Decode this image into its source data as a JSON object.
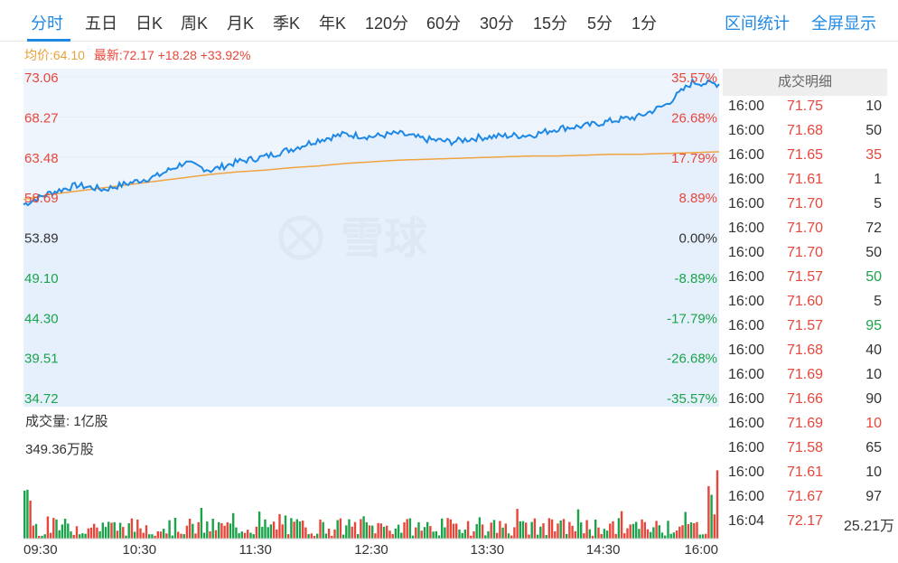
{
  "tabs": [
    {
      "label": "分时",
      "active": true
    },
    {
      "label": "五日"
    },
    {
      "label": "日K"
    },
    {
      "label": "周K"
    },
    {
      "label": "月K"
    },
    {
      "label": "季K"
    },
    {
      "label": "年K"
    },
    {
      "label": "120分"
    },
    {
      "label": "60分"
    },
    {
      "label": "30分"
    },
    {
      "label": "15分"
    },
    {
      "label": "5分"
    },
    {
      "label": "1分"
    }
  ],
  "links": {
    "range_stats": "区间统计",
    "fullscreen": "全屏显示"
  },
  "info": {
    "avg_price": "均价:64.10",
    "latest": "最新:72.17 +18.28 +33.92%"
  },
  "watermark": "雪球",
  "volume_labels": {
    "unit": "成交量: 1亿股",
    "max": "349.36万股"
  },
  "colors": {
    "up": "#e8463a",
    "down": "#1aa34a",
    "line": "#1e88e5",
    "avg": "#f0a340",
    "fill": "#eef5fd"
  },
  "chart_data": {
    "type": "line",
    "prev_close": 53.89,
    "ylim": [
      34.72,
      73.06
    ],
    "price_ticks": [
      "73.06",
      "68.27",
      "63.48",
      "58.69",
      "53.89",
      "49.10",
      "44.30",
      "39.51",
      "34.72"
    ],
    "pct_ticks": [
      "35.57%",
      "26.68%",
      "17.79%",
      "8.89%",
      "0.00%",
      "-8.89%",
      "-17.79%",
      "-26.68%",
      "-35.57%"
    ],
    "time_ticks": [
      "09:30",
      "10:30",
      "11:30",
      "12:30",
      "13:30",
      "14:30",
      "16:00"
    ],
    "x": [
      "09:30",
      "09:45",
      "10:00",
      "10:15",
      "10:30",
      "10:45",
      "11:00",
      "11:15",
      "11:30",
      "11:45",
      "12:00",
      "12:15",
      "12:30",
      "12:45",
      "13:00",
      "13:15",
      "13:30",
      "13:45",
      "14:00",
      "14:15",
      "14:30",
      "14:45",
      "15:00",
      "15:15",
      "15:30",
      "15:45",
      "16:00"
    ],
    "series": [
      {
        "values": [
          57.8,
          59.2,
          60.1,
          59.6,
          60.4,
          61.2,
          62.8,
          61.9,
          62.9,
          63.5,
          64.4,
          65.5,
          66.2,
          65.9,
          66.3,
          65.6,
          65.3,
          65.8,
          66.0,
          66.1,
          66.9,
          67.2,
          67.8,
          68.3,
          69.7,
          72.4,
          72.2
        ]
      },
      {
        "values": [
          58.4,
          59.0,
          59.4,
          59.8,
          60.2,
          60.6,
          61.0,
          61.4,
          61.7,
          61.9,
          62.2,
          62.4,
          62.7,
          62.9,
          63.1,
          63.2,
          63.3,
          63.4,
          63.5,
          63.6,
          63.6,
          63.7,
          63.8,
          63.8,
          63.9,
          64.0,
          64.1
        ]
      }
    ]
  },
  "trades": {
    "title": "成交明细",
    "rows": [
      {
        "time": "16:00",
        "price": "71.75",
        "vol": "10",
        "dir": "black"
      },
      {
        "time": "16:00",
        "price": "71.68",
        "vol": "50",
        "dir": "black"
      },
      {
        "time": "16:00",
        "price": "71.65",
        "vol": "35",
        "dir": "red"
      },
      {
        "time": "16:00",
        "price": "71.61",
        "vol": "1",
        "dir": "black"
      },
      {
        "time": "16:00",
        "price": "71.70",
        "vol": "5",
        "dir": "black"
      },
      {
        "time": "16:00",
        "price": "71.70",
        "vol": "72",
        "dir": "black"
      },
      {
        "time": "16:00",
        "price": "71.70",
        "vol": "50",
        "dir": "black"
      },
      {
        "time": "16:00",
        "price": "71.57",
        "vol": "50",
        "dir": "green"
      },
      {
        "time": "16:00",
        "price": "71.60",
        "vol": "5",
        "dir": "black"
      },
      {
        "time": "16:00",
        "price": "71.57",
        "vol": "95",
        "dir": "green"
      },
      {
        "time": "16:00",
        "price": "71.68",
        "vol": "40",
        "dir": "black"
      },
      {
        "time": "16:00",
        "price": "71.69",
        "vol": "10",
        "dir": "black"
      },
      {
        "time": "16:00",
        "price": "71.66",
        "vol": "90",
        "dir": "black"
      },
      {
        "time": "16:00",
        "price": "71.69",
        "vol": "10",
        "dir": "red"
      },
      {
        "time": "16:00",
        "price": "71.58",
        "vol": "65",
        "dir": "black"
      },
      {
        "time": "16:00",
        "price": "71.61",
        "vol": "10",
        "dir": "black"
      },
      {
        "time": "16:00",
        "price": "71.67",
        "vol": "97",
        "dir": "black"
      },
      {
        "time": "16:04",
        "price": "72.17",
        "vol": "25.21万",
        "dir": "black"
      }
    ]
  }
}
